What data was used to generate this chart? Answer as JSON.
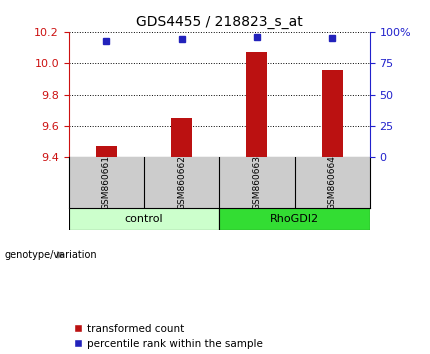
{
  "title": "GDS4455 / 218823_s_at",
  "samples": [
    "GSM860661",
    "GSM860662",
    "GSM860663",
    "GSM860664"
  ],
  "groups": [
    "control",
    "control",
    "RhoGDI2",
    "RhoGDI2"
  ],
  "transformed_counts": [
    9.47,
    9.65,
    10.07,
    9.96
  ],
  "percentile_ranks": [
    93,
    94,
    96,
    95
  ],
  "ylim_left": [
    9.4,
    10.2
  ],
  "ylim_right": [
    0,
    100
  ],
  "yticks_left": [
    9.4,
    9.6,
    9.8,
    10.0,
    10.2
  ],
  "yticks_right": [
    0,
    25,
    50,
    75,
    100
  ],
  "bar_color": "#bb1111",
  "marker_color": "#2222bb",
  "bar_bottom": 9.4,
  "group_colors": {
    "control": "#ccffcc",
    "RhoGDI2": "#33dd33"
  },
  "group_label_color": "black",
  "left_axis_color": "#cc1111",
  "right_axis_color": "#2222cc",
  "bg_color": "#ffffff",
  "plot_bg_color": "#ffffff",
  "sample_box_color": "#cccccc",
  "legend_red_label": "transformed count",
  "legend_blue_label": "percentile rank within the sample",
  "genotype_label": "genotype/variation"
}
